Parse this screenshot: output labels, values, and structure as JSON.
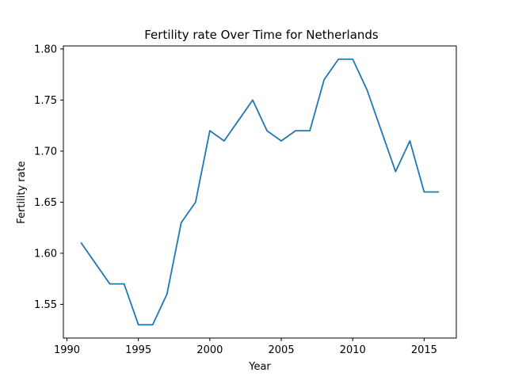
{
  "chart_data": {
    "type": "line",
    "title": "Fertility rate Over Time for Netherlands",
    "xlabel": "Year",
    "ylabel": "Fertility rate",
    "xlim": [
      1989.75,
      2017.25
    ],
    "ylim": [
      1.517,
      1.803
    ],
    "x_ticks": [
      1990,
      1995,
      2000,
      2005,
      2010,
      2015
    ],
    "y_ticks": [
      1.55,
      1.6,
      1.65,
      1.7,
      1.75,
      1.8
    ],
    "grid": false,
    "series": [
      {
        "color": "#1f77b4",
        "x": [
          1991,
          1992,
          1993,
          1994,
          1995,
          1996,
          1997,
          1998,
          1999,
          2000,
          2001,
          2002,
          2003,
          2004,
          2005,
          2006,
          2007,
          2008,
          2009,
          2010,
          2011,
          2012,
          2013,
          2014,
          2015,
          2016
        ],
        "y": [
          1.61,
          1.59,
          1.57,
          1.57,
          1.53,
          1.53,
          1.56,
          1.63,
          1.65,
          1.72,
          1.71,
          1.73,
          1.75,
          1.72,
          1.71,
          1.72,
          1.72,
          1.77,
          1.79,
          1.79,
          1.76,
          1.72,
          1.68,
          1.71,
          1.66,
          1.66
        ]
      }
    ]
  }
}
